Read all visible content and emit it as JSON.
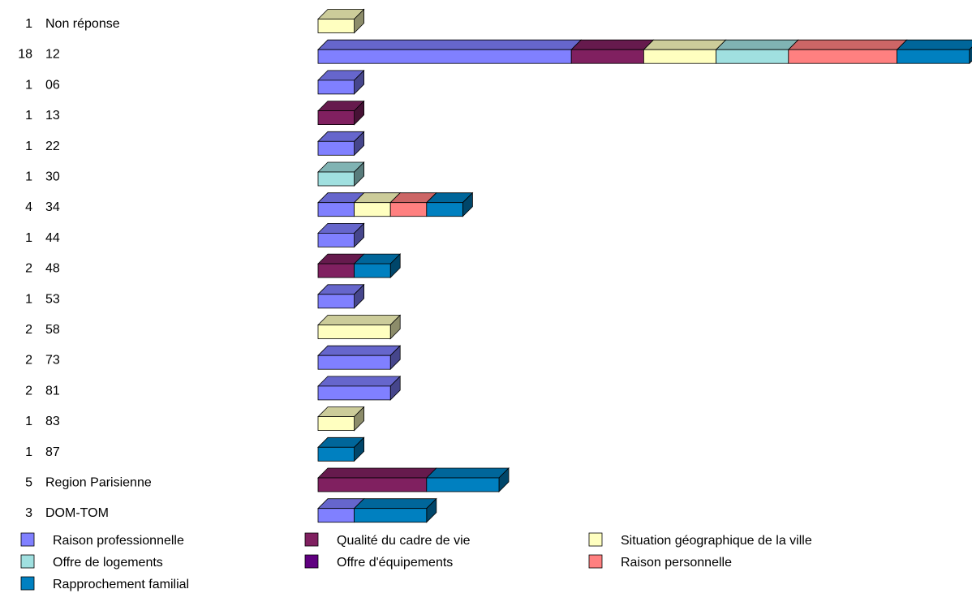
{
  "chart_data": {
    "type": "bar",
    "orientation": "horizontal",
    "stacked": true,
    "style": "3d",
    "grid": false,
    "legend_position": "bottom",
    "categories": [
      "Non réponse",
      "12",
      "06",
      "13",
      "22",
      "30",
      "34",
      "44",
      "48",
      "53",
      "58",
      "73",
      "81",
      "83",
      "87",
      "Region Parisienne",
      "DOM-TOM"
    ],
    "totals": [
      1,
      18,
      1,
      1,
      1,
      1,
      4,
      1,
      2,
      1,
      2,
      2,
      2,
      1,
      1,
      5,
      3
    ],
    "series": [
      {
        "name": "Raison professionnelle",
        "color": "#8080ff",
        "values": [
          0,
          7,
          1,
          0,
          1,
          0,
          1,
          1,
          0,
          1,
          0,
          2,
          2,
          0,
          0,
          0,
          1
        ]
      },
      {
        "name": "Qualité du cadre de vie",
        "color": "#802060",
        "values": [
          0,
          2,
          0,
          1,
          0,
          0,
          0,
          0,
          1,
          0,
          0,
          0,
          0,
          0,
          0,
          3,
          0
        ]
      },
      {
        "name": "Situation géographique de la ville",
        "color": "#ffffc0",
        "values": [
          1,
          2,
          0,
          0,
          0,
          0,
          1,
          0,
          0,
          0,
          2,
          0,
          0,
          1,
          0,
          0,
          0
        ]
      },
      {
        "name": "Offre de logements",
        "color": "#a0e0e0",
        "values": [
          0,
          2,
          0,
          0,
          0,
          1,
          0,
          0,
          0,
          0,
          0,
          0,
          0,
          0,
          0,
          0,
          0
        ]
      },
      {
        "name": "Offre d'équipements",
        "color": "#600080",
        "values": [
          0,
          0,
          0,
          0,
          0,
          0,
          0,
          0,
          0,
          0,
          0,
          0,
          0,
          0,
          0,
          0,
          0
        ]
      },
      {
        "name": "Raison personnelle",
        "color": "#ff8080",
        "values": [
          0,
          3,
          0,
          0,
          0,
          0,
          1,
          0,
          0,
          0,
          0,
          0,
          0,
          0,
          0,
          0,
          0
        ]
      },
      {
        "name": "Rapprochement familial",
        "color": "#0080c0",
        "values": [
          0,
          2,
          0,
          0,
          0,
          0,
          1,
          0,
          1,
          0,
          0,
          0,
          0,
          0,
          1,
          2,
          2
        ]
      }
    ]
  }
}
